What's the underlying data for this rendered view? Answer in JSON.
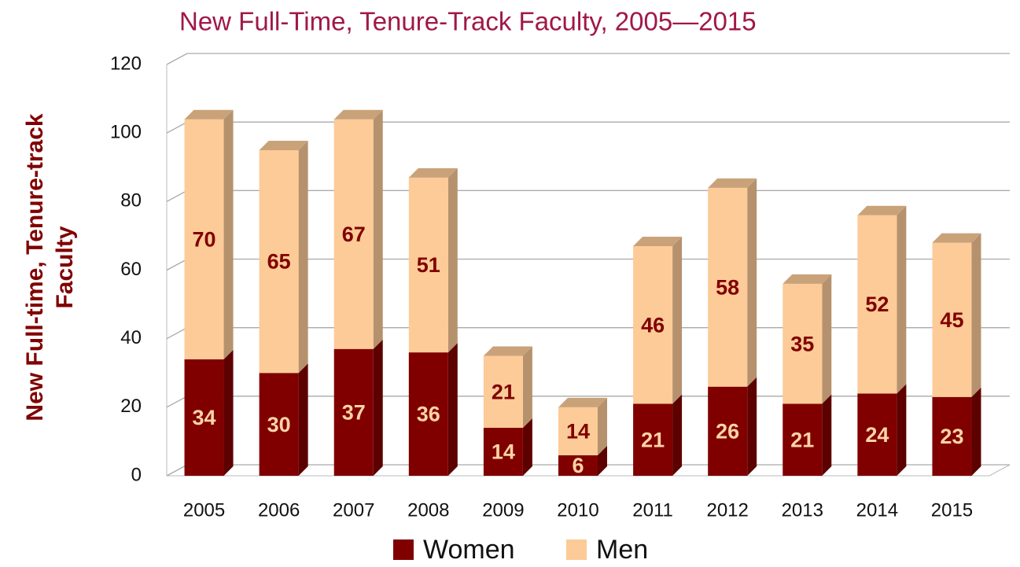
{
  "chart_data": {
    "type": "stacked_bar_3d",
    "title": "New Full-Time, Tenure-Track Faculty, 2005—2015",
    "ylabel": [
      "New Full-time, Tenure-track",
      "Faculty"
    ],
    "categories": [
      "2005",
      "2006",
      "2007",
      "2008",
      "2009",
      "2010",
      "2011",
      "2012",
      "2013",
      "2014",
      "2015"
    ],
    "series": [
      {
        "name": "Women",
        "color": "#800000",
        "values": [
          34,
          30,
          37,
          36,
          14,
          6,
          21,
          26,
          21,
          24,
          23
        ]
      },
      {
        "name": "Men",
        "color": "#fccb97",
        "values": [
          70,
          65,
          67,
          51,
          21,
          14,
          46,
          58,
          35,
          52,
          45
        ]
      }
    ],
    "ylim": [
      0,
      120
    ],
    "yticks": [
      0,
      20,
      40,
      60,
      80,
      100,
      120
    ],
    "grid": true,
    "legend": "bottom"
  }
}
